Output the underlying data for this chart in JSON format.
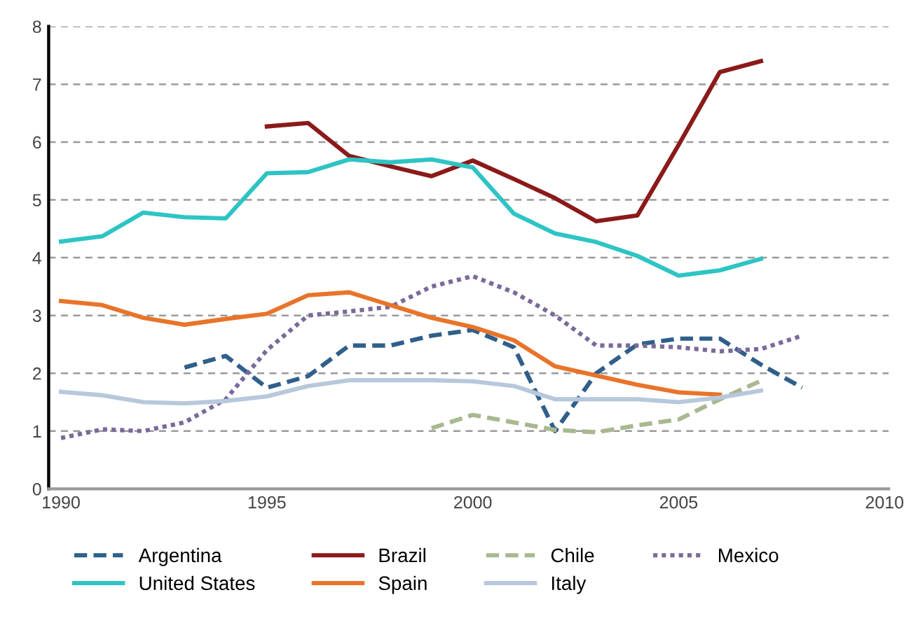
{
  "chart_data": {
    "type": "line",
    "x": [
      1990,
      1991,
      1992,
      1993,
      1994,
      1995,
      1996,
      1997,
      1998,
      1999,
      2000,
      2001,
      2002,
      2003,
      2004,
      2005,
      2006,
      2007,
      2008
    ],
    "series": [
      {
        "name": "Argentina",
        "color": "#2f5f8a",
        "line_style": "dashed",
        "values": [
          null,
          null,
          null,
          2.1,
          2.3,
          1.75,
          1.95,
          2.48,
          2.48,
          2.65,
          2.75,
          2.45,
          1.0,
          2.0,
          2.5,
          2.6,
          2.6,
          2.15,
          1.75
        ]
      },
      {
        "name": "Brazil",
        "color": "#8b1a1a",
        "values": [
          null,
          null,
          null,
          null,
          null,
          6.27,
          6.33,
          5.76,
          5.58,
          5.41,
          5.68,
          5.36,
          5.03,
          4.63,
          4.73,
          5.95,
          7.21,
          7.4,
          null
        ]
      },
      {
        "name": "Chile",
        "color": "#a8b890",
        "line_style": "dashed",
        "values": [
          null,
          null,
          null,
          null,
          null,
          null,
          null,
          null,
          null,
          1.05,
          1.28,
          1.15,
          1.02,
          0.98,
          1.1,
          1.2,
          1.55,
          1.87,
          null
        ]
      },
      {
        "name": "Mexico",
        "color": "#7a6a9a",
        "line_style": "dotted",
        "values": [
          0.88,
          1.03,
          1.0,
          1.15,
          1.55,
          2.4,
          3.0,
          3.07,
          3.15,
          3.5,
          3.68,
          3.4,
          3.0,
          2.48,
          2.48,
          2.45,
          2.38,
          2.42,
          2.65
        ]
      },
      {
        "name": "United States",
        "color": "#2ec4c4",
        "values": [
          4.28,
          4.37,
          4.78,
          4.7,
          4.68,
          5.46,
          5.48,
          5.7,
          5.65,
          5.7,
          5.56,
          4.76,
          4.42,
          4.27,
          4.03,
          3.69,
          3.78,
          3.98,
          null
        ]
      },
      {
        "name": "Spain",
        "color": "#e8742a",
        "values": [
          3.25,
          3.18,
          2.96,
          2.84,
          2.94,
          3.03,
          3.35,
          3.4,
          3.18,
          2.96,
          2.8,
          2.57,
          2.12,
          1.96,
          1.8,
          1.67,
          1.63,
          null,
          null
        ]
      },
      {
        "name": "Italy",
        "color": "#b8c8dc",
        "values": [
          1.68,
          1.62,
          1.5,
          1.48,
          1.52,
          1.6,
          1.78,
          1.88,
          1.88,
          1.88,
          1.86,
          1.78,
          1.55,
          1.55,
          1.55,
          1.5,
          1.58,
          1.7,
          null
        ]
      }
    ],
    "xlim": [
      1989.7,
      2010.1
    ],
    "xticks": [
      1990,
      1995,
      2000,
      2005,
      2010
    ],
    "ylim": [
      0,
      8
    ],
    "yticks": [
      0,
      1,
      2,
      3,
      4,
      5,
      6,
      7,
      8
    ],
    "grid": "y",
    "legend": "bottom",
    "marker": "none"
  }
}
